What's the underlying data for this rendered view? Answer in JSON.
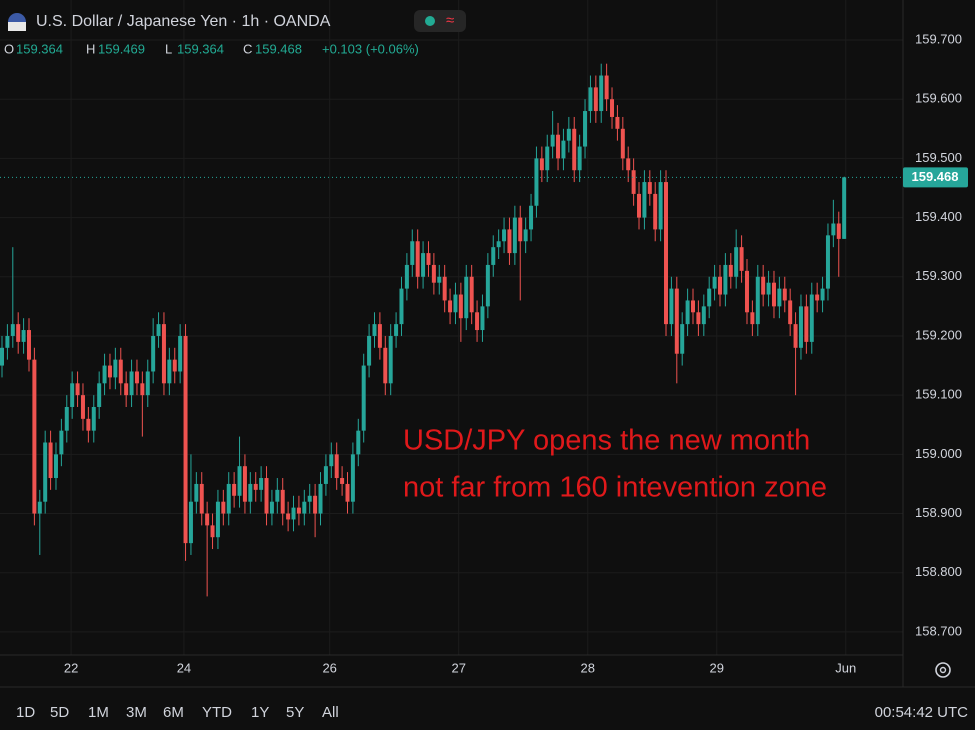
{
  "chart_data": {
    "type": "candlestick",
    "title": "U.S. Dollar / Japanese Yen · 1h · OANDA",
    "ohlc_labels": [
      "O",
      "H",
      "L",
      "C"
    ],
    "change": "+0.103 (+0.06%)",
    "up_color": "#26a69a",
    "down_color": "#ef5350",
    "open": [
      159.15,
      159.18,
      159.2,
      159.22,
      159.19,
      159.21,
      159.16,
      158.9,
      158.92,
      159.02,
      158.96,
      159.0,
      159.04,
      159.08,
      159.12,
      159.1,
      159.06,
      159.04,
      159.08,
      159.12,
      159.15,
      159.13,
      159.16,
      159.12,
      159.1,
      159.14,
      159.12,
      159.1,
      159.14,
      159.2,
      159.22,
      159.12,
      159.16,
      159.14,
      159.2,
      158.85,
      158.92,
      158.95,
      158.9,
      158.88,
      158.86,
      158.92,
      158.9,
      158.95,
      158.93,
      158.98,
      158.92,
      158.95,
      158.94,
      158.96,
      158.9,
      158.92,
      158.94,
      158.9,
      158.89,
      158.91,
      158.9,
      158.92,
      158.93,
      158.9,
      158.95,
      158.98,
      159.0,
      158.96,
      158.95,
      158.92,
      159.0,
      159.04,
      159.15,
      159.2,
      159.22,
      159.18,
      159.12,
      159.2,
      159.22,
      159.28,
      159.32,
      159.36,
      159.3,
      159.34,
      159.32,
      159.29,
      159.3,
      159.26,
      159.24,
      159.27,
      159.23,
      159.3,
      159.24,
      159.21,
      159.25,
      159.32,
      159.35,
      159.36,
      159.38,
      159.34,
      159.4,
      159.36,
      159.38,
      159.42,
      159.5,
      159.48,
      159.52,
      159.54,
      159.5,
      159.53,
      159.55,
      159.48,
      159.52,
      159.58,
      159.62,
      159.58,
      159.64,
      159.6,
      159.57,
      159.55,
      159.5,
      159.48,
      159.44,
      159.4,
      159.46,
      159.44,
      159.38,
      159.46,
      159.22,
      159.28,
      159.17,
      159.22,
      159.26,
      159.24,
      159.22,
      159.25,
      159.28,
      159.3,
      159.27,
      159.32,
      159.3,
      159.35,
      159.31,
      159.24,
      159.22,
      159.3,
      159.27,
      159.29,
      159.25,
      159.28,
      159.26,
      159.22,
      159.18,
      159.25,
      159.19,
      159.27,
      159.26,
      159.28,
      159.37,
      159.39,
      159.364
    ],
    "high": [
      159.2,
      159.22,
      159.35,
      159.24,
      159.23,
      159.23,
      159.18,
      158.94,
      159.04,
      159.04,
      159.02,
      159.06,
      159.1,
      159.14,
      159.14,
      159.12,
      159.08,
      159.1,
      159.14,
      159.17,
      159.17,
      159.18,
      159.18,
      159.14,
      159.16,
      159.16,
      159.14,
      159.16,
      159.23,
      159.24,
      159.24,
      159.18,
      159.18,
      159.22,
      159.22,
      159.0,
      158.97,
      158.97,
      158.92,
      158.9,
      158.94,
      158.94,
      158.97,
      158.97,
      159.03,
      159.0,
      158.97,
      158.97,
      158.98,
      158.98,
      158.94,
      158.96,
      158.96,
      158.92,
      158.93,
      158.93,
      158.94,
      158.95,
      158.95,
      158.97,
      159.0,
      159.02,
      159.02,
      158.98,
      158.97,
      159.02,
      159.06,
      159.17,
      159.22,
      159.24,
      159.24,
      159.2,
      159.22,
      159.24,
      159.3,
      159.34,
      159.38,
      159.38,
      159.36,
      159.36,
      159.34,
      159.32,
      159.32,
      159.28,
      159.29,
      159.29,
      159.32,
      159.32,
      159.26,
      159.27,
      159.34,
      159.37,
      159.38,
      159.4,
      159.4,
      159.42,
      159.42,
      159.4,
      159.44,
      159.52,
      159.52,
      159.54,
      159.58,
      159.56,
      159.55,
      159.57,
      159.57,
      159.54,
      159.6,
      159.64,
      159.64,
      159.66,
      159.66,
      159.62,
      159.59,
      159.57,
      159.52,
      159.5,
      159.46,
      159.48,
      159.48,
      159.46,
      159.48,
      159.48,
      159.3,
      159.3,
      159.24,
      159.28,
      159.28,
      159.26,
      159.27,
      159.3,
      159.32,
      159.32,
      159.34,
      159.34,
      159.38,
      159.37,
      159.33,
      159.26,
      159.32,
      159.32,
      159.31,
      159.31,
      159.3,
      159.3,
      159.28,
      159.24,
      159.27,
      159.27,
      159.29,
      159.29,
      159.3,
      159.39,
      159.43,
      159.41,
      159.469
    ],
    "low": [
      159.13,
      159.16,
      159.18,
      159.17,
      159.17,
      159.14,
      158.88,
      158.83,
      158.9,
      158.94,
      158.94,
      158.98,
      159.02,
      159.06,
      159.08,
      159.04,
      159.02,
      159.02,
      159.06,
      159.1,
      159.11,
      159.11,
      159.1,
      159.08,
      159.08,
      159.1,
      159.03,
      159.08,
      159.12,
      159.18,
      159.1,
      159.1,
      159.12,
      159.12,
      158.82,
      158.83,
      158.9,
      158.88,
      158.76,
      158.84,
      158.84,
      158.88,
      158.88,
      158.91,
      158.91,
      158.9,
      158.9,
      158.92,
      158.92,
      158.88,
      158.88,
      158.9,
      158.88,
      158.87,
      158.87,
      158.88,
      158.88,
      158.9,
      158.86,
      158.88,
      158.93,
      158.96,
      158.94,
      158.93,
      158.9,
      158.9,
      158.98,
      159.02,
      159.13,
      159.18,
      159.16,
      159.1,
      159.1,
      159.18,
      159.2,
      159.26,
      159.3,
      159.28,
      159.28,
      159.3,
      159.27,
      159.27,
      159.24,
      159.22,
      159.22,
      159.19,
      159.21,
      159.22,
      159.19,
      159.19,
      159.23,
      159.3,
      159.33,
      159.34,
      159.32,
      159.32,
      159.26,
      159.34,
      159.36,
      159.4,
      159.46,
      159.46,
      159.5,
      159.48,
      159.48,
      159.51,
      159.46,
      159.46,
      159.5,
      159.56,
      159.56,
      159.56,
      159.58,
      159.55,
      159.53,
      159.48,
      159.46,
      159.42,
      159.38,
      159.38,
      159.42,
      159.36,
      159.36,
      159.2,
      159.2,
      159.12,
      159.15,
      159.2,
      159.22,
      159.2,
      159.2,
      159.23,
      159.26,
      159.25,
      159.25,
      159.28,
      159.28,
      159.29,
      159.22,
      159.2,
      159.2,
      159.25,
      159.25,
      159.23,
      159.23,
      159.24,
      159.2,
      159.1,
      159.16,
      159.17,
      159.17,
      159.24,
      159.24,
      159.26,
      159.35,
      159.3,
      159.364
    ],
    "close": [
      159.18,
      159.2,
      159.22,
      159.19,
      159.21,
      159.16,
      158.9,
      158.92,
      159.02,
      158.96,
      159.0,
      159.04,
      159.08,
      159.12,
      159.1,
      159.06,
      159.04,
      159.08,
      159.12,
      159.15,
      159.13,
      159.16,
      159.12,
      159.1,
      159.14,
      159.12,
      159.1,
      159.14,
      159.2,
      159.22,
      159.12,
      159.16,
      159.14,
      159.2,
      158.85,
      158.92,
      158.95,
      158.9,
      158.88,
      158.86,
      158.92,
      158.9,
      158.95,
      158.93,
      158.98,
      158.92,
      158.95,
      158.94,
      158.96,
      158.9,
      158.92,
      158.94,
      158.9,
      158.89,
      158.91,
      158.9,
      158.92,
      158.93,
      158.9,
      158.95,
      158.98,
      159.0,
      158.96,
      158.95,
      158.92,
      159.0,
      159.04,
      159.15,
      159.2,
      159.22,
      159.18,
      159.12,
      159.2,
      159.22,
      159.28,
      159.32,
      159.36,
      159.3,
      159.34,
      159.32,
      159.29,
      159.3,
      159.26,
      159.24,
      159.27,
      159.23,
      159.3,
      159.24,
      159.21,
      159.25,
      159.32,
      159.35,
      159.36,
      159.38,
      159.34,
      159.4,
      159.36,
      159.38,
      159.42,
      159.5,
      159.48,
      159.52,
      159.54,
      159.5,
      159.53,
      159.55,
      159.48,
      159.52,
      159.58,
      159.62,
      159.58,
      159.64,
      159.6,
      159.57,
      159.55,
      159.5,
      159.48,
      159.44,
      159.4,
      159.46,
      159.44,
      159.38,
      159.46,
      159.22,
      159.28,
      159.17,
      159.22,
      159.26,
      159.24,
      159.22,
      159.25,
      159.28,
      159.3,
      159.27,
      159.32,
      159.3,
      159.35,
      159.31,
      159.24,
      159.22,
      159.3,
      159.27,
      159.29,
      159.25,
      159.28,
      159.26,
      159.22,
      159.18,
      159.25,
      159.19,
      159.27,
      159.26,
      159.28,
      159.37,
      159.39,
      159.364,
      159.468
    ],
    "xlim": [
      -0.37,
      166.9
    ],
    "xticks": [
      {
        "value": 12.8,
        "label": "22"
      },
      {
        "value": 33.7,
        "label": "24"
      },
      {
        "value": 60.7,
        "label": "26"
      },
      {
        "value": 84.6,
        "label": "27"
      },
      {
        "value": 108.5,
        "label": "28"
      },
      {
        "value": 132.4,
        "label": "29"
      },
      {
        "value": 156.3,
        "label": "Jun"
      }
    ],
    "ylim": [
      158.661,
      159.7676
    ],
    "yticks": [
      {
        "value": 158.7,
        "label": "158.700"
      },
      {
        "value": 158.8,
        "label": "158.800"
      },
      {
        "value": 158.9,
        "label": "158.900"
      },
      {
        "value": 159.0,
        "label": "159.000"
      },
      {
        "value": 159.1,
        "label": "159.100"
      },
      {
        "value": 159.2,
        "label": "159.200"
      },
      {
        "value": 159.3,
        "label": "159.300"
      },
      {
        "value": 159.4,
        "label": "159.400"
      },
      {
        "value": 159.5,
        "label": "159.500"
      },
      {
        "value": 159.6,
        "label": "159.600"
      },
      {
        "value": 159.7,
        "label": "159.700"
      }
    ],
    "grid": true,
    "annotation": [
      "USD/JPY opens the new month",
      "not far from 160 intevention zone"
    ]
  },
  "toolbar": {
    "ranges": [
      "1D",
      "5D",
      "1M",
      "3M",
      "6M",
      "YTD",
      "1Y",
      "5Y",
      "All"
    ],
    "clock": "00:54:42 UTC"
  }
}
